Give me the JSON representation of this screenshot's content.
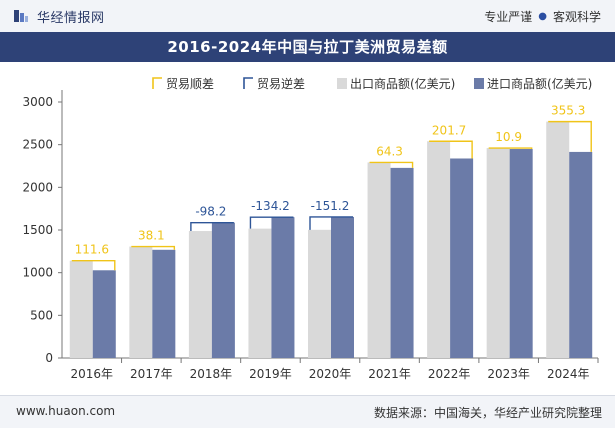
{
  "header": {
    "brand": "华经情报网",
    "tagline_left": "专业严谨",
    "tagline_right": "客观科学"
  },
  "footer": {
    "url": "www.huaon.com",
    "source": "数据来源：中国海关，华经产业研究院整理"
  },
  "colors": {
    "export": "#d9d9d9",
    "import": "#6b7ba8",
    "surplus": "#f0c419",
    "deficit": "#2e5597",
    "title_bg": "#2e4277"
  },
  "chart_data": {
    "type": "bar",
    "title": "2016-2024年中国与拉丁美洲贸易差额",
    "categories": [
      "2016年",
      "2017年",
      "2018年",
      "2019年",
      "2020年",
      "2021年",
      "2022年",
      "2023年",
      "2024年"
    ],
    "ylim": [
      0,
      3000
    ],
    "yticks": [
      0,
      500,
      1000,
      1500,
      2000,
      2500,
      3000
    ],
    "legend_position": "top",
    "series": [
      {
        "name": "贸易顺差",
        "style": "bracket",
        "color": "#f0c419",
        "values": [
          111.6,
          38.1,
          null,
          null,
          null,
          64.3,
          201.7,
          10.9,
          355.3
        ],
        "labels": [
          "111.6",
          "38.1",
          null,
          null,
          null,
          "64.3",
          "201.7",
          "10.9",
          "355.3"
        ]
      },
      {
        "name": "贸易逆差",
        "style": "bracket",
        "color": "#2e5597",
        "values": [
          null,
          null,
          -98.2,
          -134.2,
          -151.2,
          null,
          null,
          null,
          null
        ],
        "labels": [
          null,
          null,
          "-98.2",
          "-134.2",
          "-151.2",
          null,
          null,
          null,
          null
        ]
      },
      {
        "name": "出口商品额(亿美元)",
        "style": "bar",
        "color": "#d9d9d9",
        "values": [
          1140,
          1306,
          1488,
          1516,
          1502,
          2292,
          2540,
          2460,
          2770
        ]
      },
      {
        "name": "进口商品额(亿美元)",
        "style": "bar",
        "color": "#6b7ba8",
        "values": [
          1028,
          1268,
          1586,
          1650,
          1653,
          2228,
          2338,
          2449,
          2415
        ]
      }
    ]
  }
}
